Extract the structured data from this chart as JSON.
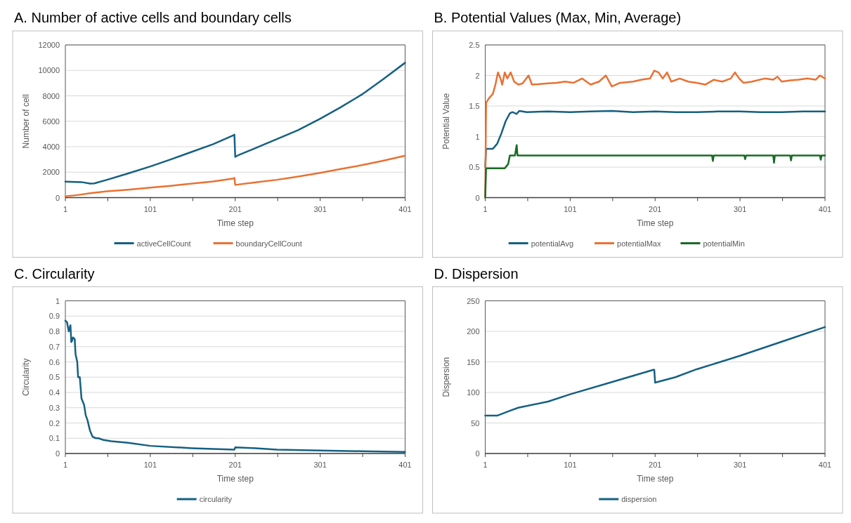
{
  "chart_data": [
    {
      "type": "line",
      "title": "A. Number of active cells and boundary cells",
      "xlabel": "Time step",
      "ylabel": "Number of cell",
      "xlim": [
        1,
        401
      ],
      "xticks": [
        1,
        {
          "value": 51,
          "label": null
        },
        101,
        {
          "value": 151,
          "label": null
        },
        201,
        {
          "value": 251,
          "label": null
        },
        301,
        {
          "value": 351,
          "label": null
        },
        401
      ],
      "ylim": [
        0,
        12000
      ],
      "yticks": [
        0,
        2000,
        4000,
        6000,
        8000,
        10000,
        12000
      ],
      "grid": "y",
      "legend": "bottom",
      "line_style": "solid",
      "series": [
        {
          "name": "activeCellCount",
          "color": "#156082",
          "x": [
            1,
            20,
            30,
            35,
            50,
            75,
            101,
            125,
            150,
            175,
            199,
            200,
            201,
            205,
            225,
            250,
            275,
            301,
            325,
            350,
            375,
            401
          ],
          "values": [
            1250,
            1220,
            1100,
            1120,
            1400,
            1900,
            2450,
            3000,
            3600,
            4200,
            4900,
            4950,
            3200,
            3350,
            3900,
            4600,
            5300,
            6200,
            7100,
            8100,
            9300,
            10600
          ]
        },
        {
          "name": "boundaryCellCount",
          "color": "#e97132",
          "x": [
            1,
            15,
            30,
            50,
            75,
            101,
            125,
            150,
            175,
            199,
            200,
            201,
            225,
            250,
            275,
            301,
            325,
            350,
            375,
            401
          ],
          "values": [
            100,
            200,
            350,
            500,
            620,
            780,
            930,
            1100,
            1270,
            1500,
            1550,
            1000,
            1200,
            1400,
            1650,
            1950,
            2250,
            2550,
            2900,
            3300
          ]
        }
      ]
    },
    {
      "type": "line",
      "title": "B. Potential Values (Max, Min, Average)",
      "xlabel": "Time step",
      "ylabel": "Potential Value",
      "xlim": [
        1,
        401
      ],
      "xticks": [
        1,
        {
          "value": 51,
          "label": null
        },
        101,
        {
          "value": 151,
          "label": null
        },
        201,
        {
          "value": 251,
          "label": null
        },
        301,
        {
          "value": 351,
          "label": null
        },
        401
      ],
      "ylim": [
        0,
        2.5
      ],
      "yticks": [
        0,
        0.5,
        1,
        1.5,
        2,
        2.5
      ],
      "grid": "y",
      "legend": "bottom",
      "line_style": "solid",
      "series": [
        {
          "name": "potentialAvg",
          "color": "#156082",
          "x": [
            1,
            2,
            10,
            15,
            20,
            25,
            30,
            33,
            38,
            41,
            50,
            75,
            101,
            125,
            150,
            175,
            201,
            225,
            250,
            275,
            301,
            325,
            350,
            375,
            401
          ],
          "values": [
            0.5,
            0.8,
            0.8,
            0.88,
            1.05,
            1.25,
            1.38,
            1.4,
            1.37,
            1.42,
            1.4,
            1.41,
            1.4,
            1.41,
            1.42,
            1.4,
            1.41,
            1.4,
            1.4,
            1.41,
            1.41,
            1.4,
            1.4,
            1.41,
            1.41
          ]
        },
        {
          "name": "potentialMax",
          "color": "#e97132",
          "x": [
            1,
            2,
            5,
            10,
            13,
            16,
            19,
            21,
            24,
            27,
            31,
            35,
            40,
            45,
            52,
            56,
            65,
            75,
            85,
            95,
            105,
            115,
            125,
            135,
            143,
            150,
            160,
            175,
            185,
            195,
            200,
            205,
            210,
            215,
            220,
            230,
            240,
            250,
            260,
            270,
            280,
            290,
            295,
            300,
            305,
            315,
            330,
            340,
            345,
            350,
            360,
            370,
            380,
            390,
            395,
            401
          ],
          "values": [
            0,
            1.55,
            1.62,
            1.7,
            1.85,
            2.05,
            1.95,
            1.85,
            2.05,
            1.95,
            2.05,
            1.9,
            1.85,
            1.87,
            2.0,
            1.85,
            1.86,
            1.87,
            1.88,
            1.9,
            1.88,
            1.95,
            1.85,
            1.9,
            2.0,
            1.82,
            1.88,
            1.9,
            1.93,
            1.95,
            2.08,
            2.05,
            1.95,
            2.05,
            1.9,
            1.95,
            1.9,
            1.88,
            1.85,
            1.93,
            1.9,
            1.95,
            2.05,
            1.95,
            1.88,
            1.9,
            1.95,
            1.93,
            1.98,
            1.9,
            1.92,
            1.93,
            1.95,
            1.93,
            2.0,
            1.95
          ]
        },
        {
          "name": "potentialMin",
          "color": "#196b24",
          "x": [
            1,
            2,
            24,
            28,
            30,
            36,
            38,
            39,
            101,
            201,
            268,
            269,
            270,
            306,
            307,
            308,
            340,
            341,
            342,
            360,
            361,
            362,
            395,
            396,
            397,
            401
          ],
          "values": [
            0,
            0.48,
            0.48,
            0.55,
            0.69,
            0.69,
            0.86,
            0.69,
            0.69,
            0.69,
            0.69,
            0.6,
            0.69,
            0.69,
            0.63,
            0.69,
            0.69,
            0.57,
            0.69,
            0.69,
            0.61,
            0.69,
            0.69,
            0.62,
            0.69,
            0.69
          ]
        }
      ]
    },
    {
      "type": "line",
      "title": "C. Circularity",
      "xlabel": "Time step",
      "ylabel": "Circularity",
      "xlim": [
        1,
        401
      ],
      "xticks": [
        1,
        {
          "value": 51,
          "label": null
        },
        101,
        {
          "value": 151,
          "label": null
        },
        201,
        {
          "value": 251,
          "label": null
        },
        301,
        {
          "value": 351,
          "label": null
        },
        401
      ],
      "ylim": [
        0,
        1
      ],
      "yticks": [
        0,
        0.1,
        0.2,
        0.3,
        0.4,
        0.5,
        0.6,
        0.7,
        0.8,
        0.9,
        1
      ],
      "grid": "y",
      "legend": "bottom",
      "line_style": "solid",
      "series": [
        {
          "name": "circularity",
          "color": "#156082",
          "x": [
            1,
            3,
            5,
            7,
            8,
            9,
            10,
            12,
            13,
            15,
            16,
            18,
            20,
            23,
            25,
            27,
            30,
            33,
            37,
            40,
            45,
            55,
            75,
            101,
            150,
            200,
            201,
            225,
            250,
            301,
            350,
            401
          ],
          "values": [
            0.87,
            0.86,
            0.8,
            0.84,
            0.73,
            0.74,
            0.76,
            0.75,
            0.65,
            0.6,
            0.5,
            0.5,
            0.36,
            0.32,
            0.25,
            0.22,
            0.15,
            0.11,
            0.1,
            0.1,
            0.09,
            0.08,
            0.07,
            0.05,
            0.035,
            0.025,
            0.04,
            0.035,
            0.025,
            0.02,
            0.015,
            0.01
          ]
        }
      ]
    },
    {
      "type": "line",
      "title": "D. Dispersion",
      "xlabel": "Time step",
      "ylabel": "Dispersion",
      "xlim": [
        1,
        401
      ],
      "xticks": [
        1,
        {
          "value": 51,
          "label": null
        },
        101,
        {
          "value": 151,
          "label": null
        },
        201,
        {
          "value": 251,
          "label": null
        },
        301,
        {
          "value": 351,
          "label": null
        },
        401
      ],
      "ylim": [
        0,
        250
      ],
      "yticks": [
        0,
        50,
        100,
        150,
        200,
        250
      ],
      "grid": "y",
      "legend": "bottom",
      "line_style": "solid",
      "series": [
        {
          "name": "dispersion",
          "color": "#156082",
          "x": [
            1,
            15,
            30,
            40,
            75,
            101,
            150,
            199,
            200,
            201,
            225,
            250,
            301,
            350,
            401
          ],
          "values": [
            62,
            62,
            70,
            75,
            85,
            97,
            117,
            137,
            137,
            116,
            125,
            138,
            160,
            183,
            207
          ]
        }
      ]
    }
  ]
}
